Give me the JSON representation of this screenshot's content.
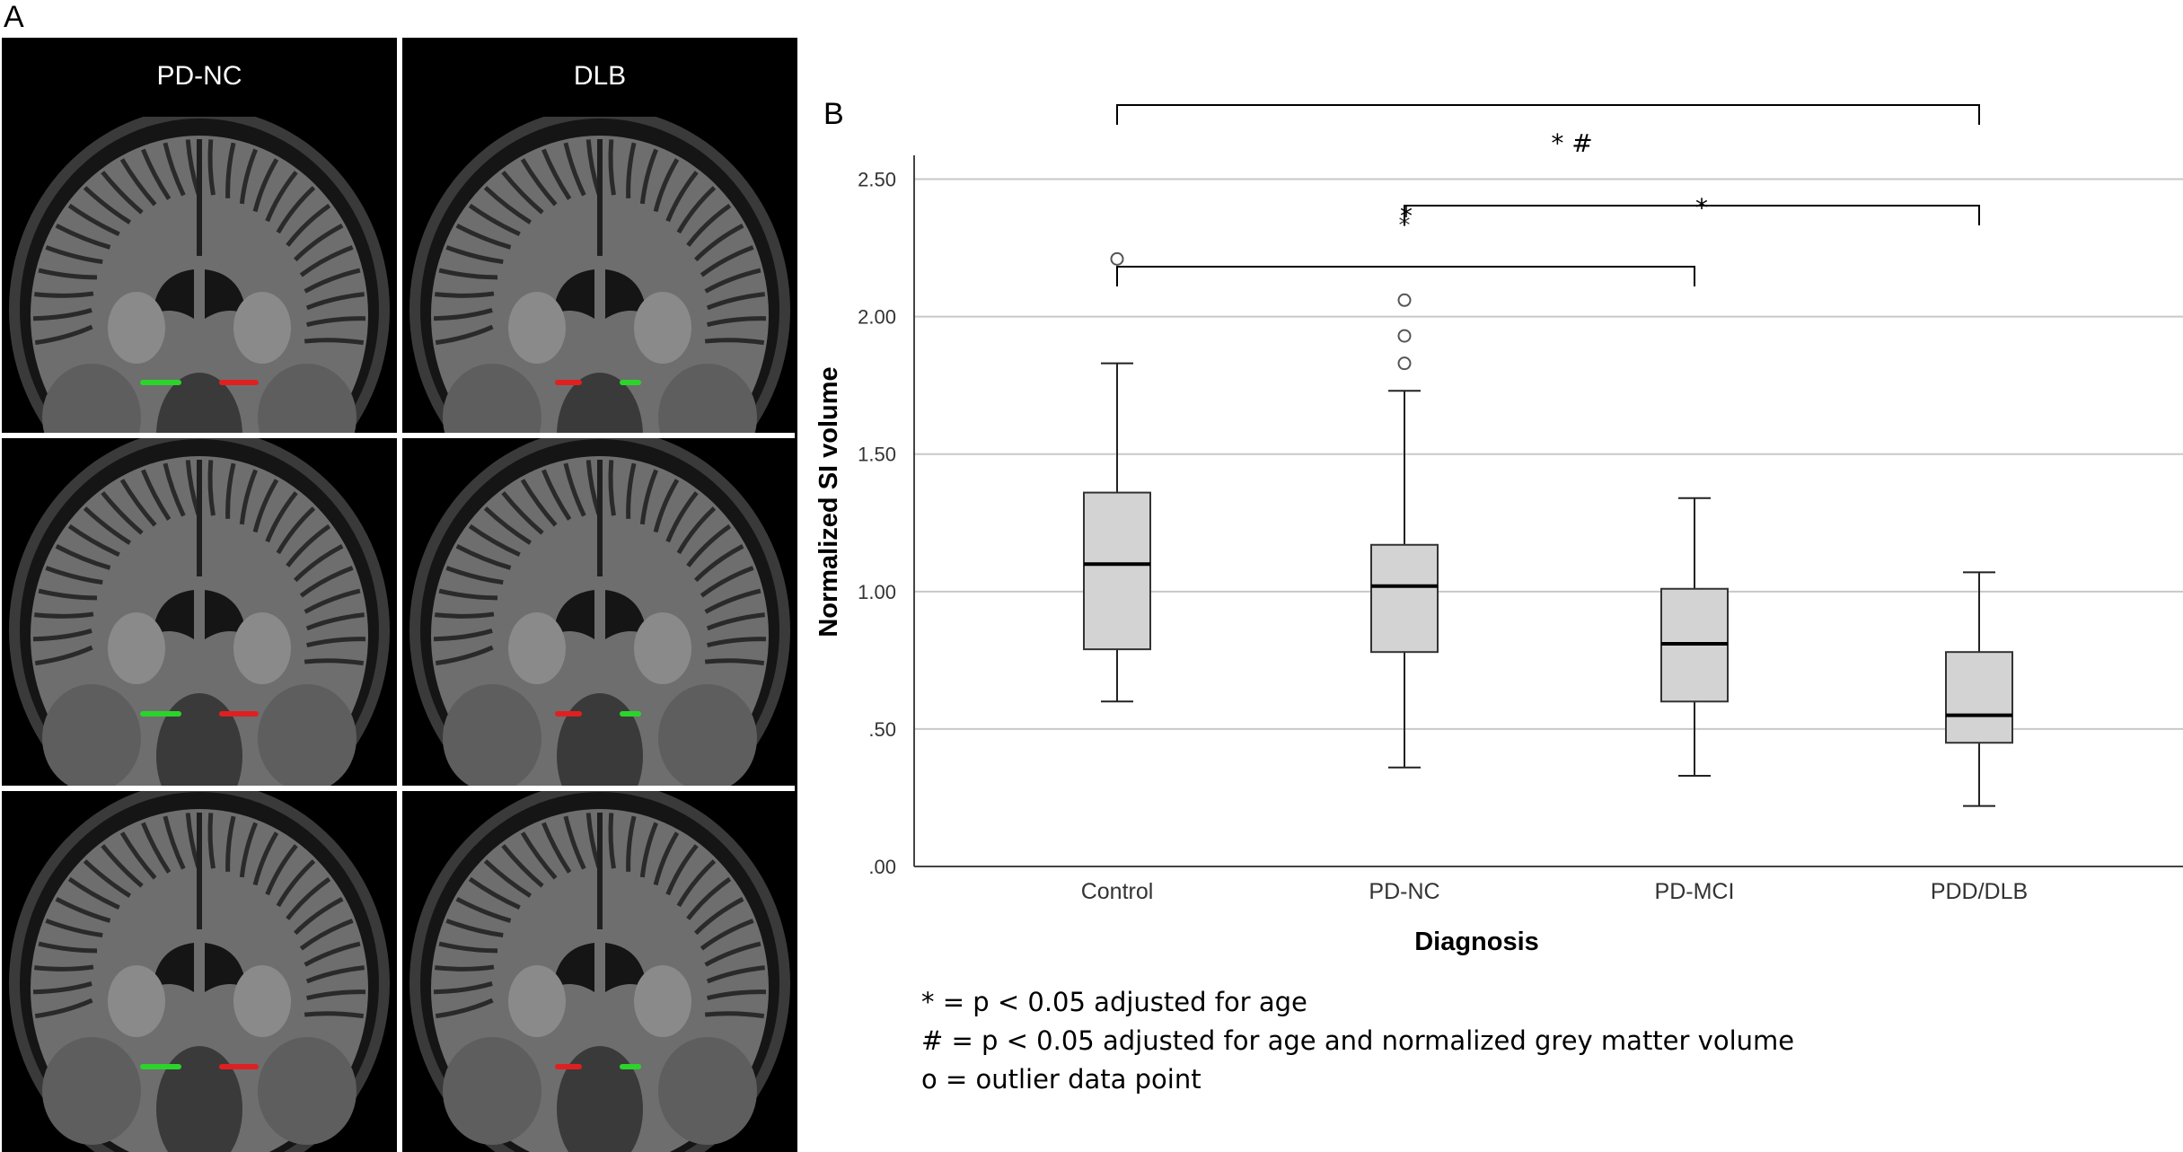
{
  "figure": {
    "panel_a_label": "A",
    "panel_b_label": "B"
  },
  "mri": {
    "columns": [
      {
        "title": "PD-NC",
        "rows": 3,
        "left_mark_color": "#2bd42b",
        "right_mark_color": "#e02020"
      },
      {
        "title": "DLB",
        "rows": 3,
        "left_mark_color": "#e02020",
        "right_mark_color": "#2bd42b"
      }
    ]
  },
  "chart_data": {
    "type": "box",
    "xlabel": "Diagnosis",
    "ylabel": "Normalized SI volume",
    "ylim": [
      0,
      2.75
    ],
    "yticks": [
      0,
      0.5,
      1.0,
      1.5,
      2.0,
      2.5
    ],
    "ytick_labels": [
      ".00",
      ".50",
      "1.00",
      "1.50",
      "2.00",
      "2.50"
    ],
    "grid": true,
    "box_fill": "#d3d3d3",
    "categories": [
      "Control",
      "PD-NC",
      "PD-MCI",
      "PDD/DLB"
    ],
    "boxes": [
      {
        "category": "Control",
        "min": 0.6,
        "q1": 0.79,
        "median": 1.1,
        "q3": 1.36,
        "max": 1.83,
        "outliers": [
          2.21
        ],
        "extreme": []
      },
      {
        "category": "PD-NC",
        "min": 0.36,
        "q1": 0.78,
        "median": 1.02,
        "q3": 1.17,
        "max": 1.73,
        "outliers": [
          1.83,
          1.93,
          2.06
        ],
        "extreme": [
          2.35
        ]
      },
      {
        "category": "PD-MCI",
        "min": 0.33,
        "q1": 0.6,
        "median": 0.81,
        "q3": 1.01,
        "max": 1.34,
        "outliers": [],
        "extreme": []
      },
      {
        "category": "PDD/DLB",
        "min": 0.22,
        "q1": 0.45,
        "median": 0.55,
        "q3": 0.78,
        "max": 1.07,
        "outliers": [],
        "extreme": []
      }
    ],
    "significance": [
      {
        "from": "Control",
        "to": "PDD/DLB",
        "label": "* #"
      },
      {
        "from": "PD-NC",
        "to": "PDD/DLB",
        "label": "*"
      },
      {
        "from": "Control",
        "to": "PD-MCI",
        "label": "*"
      }
    ]
  },
  "footnotes": [
    "* = p < 0.05 adjusted for age",
    "# = p < 0.05 adjusted for age and normalized grey matter volume",
    "o = outlier data point"
  ]
}
